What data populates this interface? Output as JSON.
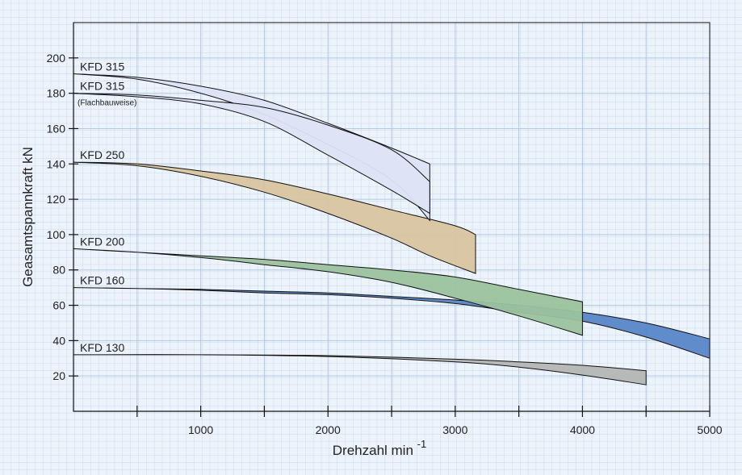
{
  "chart_data": {
    "type": "area",
    "xlabel": "Drehzahl min",
    "xlabel_sup": "-1",
    "ylabel": "Geasamtspannkraft kN",
    "xlim": [
      0,
      5000
    ],
    "ylim": [
      0,
      220
    ],
    "x_ticks": [
      1000,
      2000,
      3000,
      4000,
      5000
    ],
    "x_minor_ticks": [
      500,
      1500,
      2500,
      3500,
      4500
    ],
    "y_ticks": [
      20,
      40,
      60,
      80,
      100,
      120,
      140,
      160,
      180,
      200
    ],
    "grid": true,
    "colors": {
      "background": "#edf3fa",
      "minor_grid": "#cfddef",
      "major_grid": "#b3c8e6",
      "KFD 315": "#dde3f5",
      "KFD 315 Flachbauweise": "#dde3f5",
      "KFD 250": "#d9c4a0",
      "KFD 200": "#9cc29e",
      "KFD 160": "#5a86c8",
      "KFD 130": "#b5b5b5"
    },
    "series": [
      {
        "name": "KFD 315",
        "upper": [
          [
            0,
            191
          ],
          [
            500,
            189
          ],
          [
            1000,
            184
          ],
          [
            1500,
            176
          ],
          [
            2000,
            163
          ],
          [
            2500,
            149
          ],
          [
            2800,
            140
          ]
        ],
        "lower": [
          [
            0,
            191
          ],
          [
            500,
            188
          ],
          [
            1000,
            180
          ],
          [
            1500,
            168
          ],
          [
            2000,
            151
          ],
          [
            2500,
            131
          ],
          [
            2800,
            108
          ]
        ]
      },
      {
        "name": "KFD 315",
        "sublabel": "(Flachbauweise)",
        "upper": [
          [
            0,
            180
          ],
          [
            500,
            179
          ],
          [
            1000,
            176
          ],
          [
            1500,
            172
          ],
          [
            2000,
            162
          ],
          [
            2500,
            148
          ],
          [
            2800,
            130
          ]
        ],
        "lower": [
          [
            0,
            180
          ],
          [
            500,
            178
          ],
          [
            1000,
            174
          ],
          [
            1500,
            164
          ],
          [
            2000,
            145
          ],
          [
            2500,
            125
          ],
          [
            2800,
            112
          ]
        ]
      },
      {
        "name": "KFD 250",
        "upper": [
          [
            0,
            141
          ],
          [
            500,
            140
          ],
          [
            1000,
            136
          ],
          [
            1500,
            131
          ],
          [
            2000,
            123
          ],
          [
            2500,
            114
          ],
          [
            3000,
            105
          ],
          [
            3160,
            100
          ]
        ],
        "lower": [
          [
            0,
            141
          ],
          [
            500,
            139
          ],
          [
            1000,
            133
          ],
          [
            1500,
            124
          ],
          [
            2000,
            112
          ],
          [
            2500,
            98
          ],
          [
            2800,
            88
          ],
          [
            3160,
            78
          ]
        ]
      },
      {
        "name": "KFD 200",
        "upper": [
          [
            0,
            92
          ],
          [
            500,
            90
          ],
          [
            1000,
            88
          ],
          [
            1500,
            86
          ],
          [
            2000,
            83
          ],
          [
            2500,
            80
          ],
          [
            3000,
            76
          ],
          [
            3500,
            69
          ],
          [
            4000,
            62
          ]
        ],
        "lower": [
          [
            0,
            92
          ],
          [
            500,
            90
          ],
          [
            1000,
            87
          ],
          [
            1500,
            83
          ],
          [
            2000,
            79
          ],
          [
            2500,
            73
          ],
          [
            3000,
            64
          ],
          [
            3500,
            54
          ],
          [
            4000,
            43
          ]
        ]
      },
      {
        "name": "KFD 160",
        "upper": [
          [
            0,
            70
          ],
          [
            500,
            69.5
          ],
          [
            1000,
            69
          ],
          [
            1500,
            68
          ],
          [
            2000,
            67
          ],
          [
            2500,
            65
          ],
          [
            3000,
            63
          ],
          [
            3500,
            60
          ],
          [
            4000,
            56
          ],
          [
            4500,
            50
          ],
          [
            5000,
            41
          ]
        ],
        "lower": [
          [
            0,
            70
          ],
          [
            500,
            69.5
          ],
          [
            1000,
            68.5
          ],
          [
            1500,
            67
          ],
          [
            2000,
            66
          ],
          [
            2500,
            64
          ],
          [
            3000,
            61
          ],
          [
            3500,
            56
          ],
          [
            4000,
            51
          ],
          [
            4500,
            42
          ],
          [
            5000,
            30
          ]
        ]
      },
      {
        "name": "KFD 130",
        "upper": [
          [
            0,
            32
          ],
          [
            1000,
            32
          ],
          [
            2000,
            31.5
          ],
          [
            3000,
            29.5
          ],
          [
            3500,
            28
          ],
          [
            4000,
            26
          ],
          [
            4500,
            23
          ]
        ],
        "lower": [
          [
            0,
            32
          ],
          [
            1000,
            32
          ],
          [
            2000,
            31
          ],
          [
            3000,
            28
          ],
          [
            3500,
            25
          ],
          [
            4000,
            20.5
          ],
          [
            4500,
            15
          ]
        ]
      }
    ]
  }
}
